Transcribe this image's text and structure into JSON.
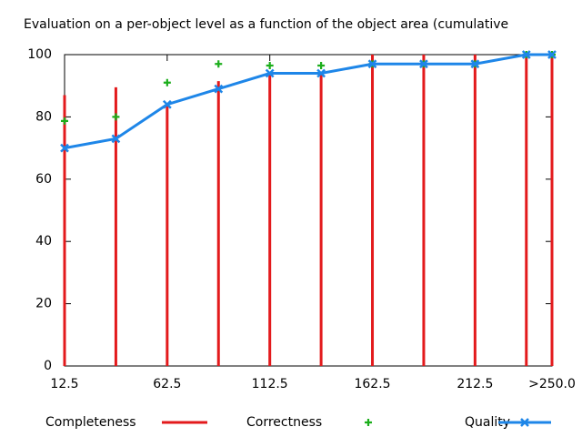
{
  "chart_data": {
    "type": "line",
    "title": "Evaluation on a per-object level as a function of the object area (cumulative",
    "x": [
      12.5,
      37.5,
      62.5,
      87.5,
      112.5,
      137.5,
      162.5,
      187.5,
      212.5,
      237.5,
      250
    ],
    "series": [
      {
        "name": "Completeness",
        "color": "#e31a1c",
        "style": "impulses",
        "values": [
          87,
          89.5,
          84.5,
          91.5,
          94,
          94,
          100,
          100,
          100,
          100,
          100
        ]
      },
      {
        "name": "Correctness",
        "color": "#1cae1c",
        "style": "points",
        "values": [
          78.7,
          80,
          91,
          97,
          96.5,
          96.5,
          97,
          97,
          97,
          100,
          100
        ]
      },
      {
        "name": "Quality",
        "color": "#1e86e8",
        "style": "linespoints",
        "values": [
          70,
          73,
          84,
          89,
          94,
          94,
          97,
          97,
          97,
          100,
          100
        ]
      }
    ],
    "xlim": [
      12.5,
      250
    ],
    "xticks": [
      12.5,
      62.5,
      112.5,
      162.5,
      212.5,
      {
        "value": 250,
        "label": ">250.0"
      }
    ],
    "ylim": [
      0,
      100
    ],
    "yticks": [
      0,
      20,
      40,
      60,
      80,
      100
    ],
    "grid": false
  }
}
